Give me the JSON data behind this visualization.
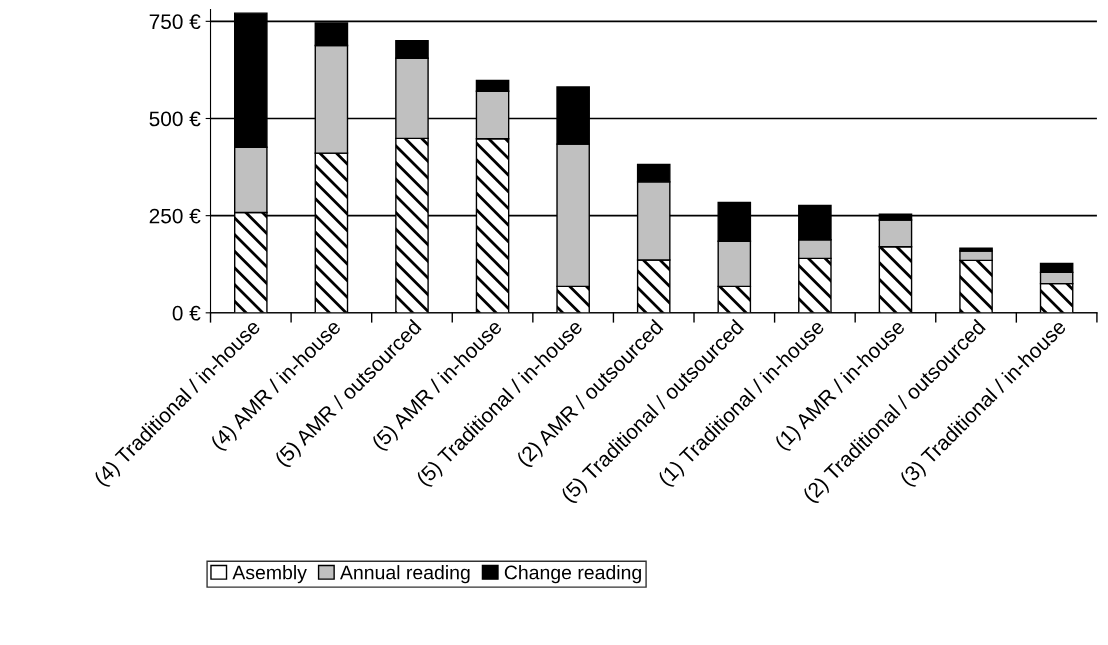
{
  "chart_data": {
    "type": "bar",
    "stacked": true,
    "categories": [
      "(4) Traditional / in-house",
      "(4) AMR / in-house",
      "(5) AMR / outsourced",
      "(5) AMR / in-house",
      "(5) Traditional / in-house",
      "(2) AMR / outsourced",
      "(5) Traditional / outsourced",
      "(1) Traditional / in-house",
      "(1) AMR / in-house",
      "(2) Traditional / outsourced",
      "(3) Traditional / in-house"
    ],
    "series": [
      {
        "name": "Asembly",
        "color": "#ffffff",
        "values": [
          258,
          411,
          449,
          448,
          68,
          136,
          68,
          140,
          170,
          135,
          75
        ]
      },
      {
        "name": "Annual reading",
        "color": "#c0c0c0",
        "values": [
          168,
          277,
          206,
          122,
          366,
          201,
          116,
          48,
          69,
          24,
          29
        ]
      },
      {
        "name": "Change reading",
        "color": "#000000",
        "values": [
          345,
          58,
          45,
          28,
          147,
          45,
          100,
          88,
          15,
          7,
          23
        ]
      }
    ],
    "ylim": [
      0,
      780
    ],
    "yticks": [
      {
        "value": 0,
        "label": "0 €"
      },
      {
        "value": 250,
        "label": "250 €"
      },
      {
        "value": 500,
        "label": "500 €"
      },
      {
        "value": 750,
        "label": "750 €"
      }
    ],
    "grid": "y",
    "legend": "bottom"
  }
}
